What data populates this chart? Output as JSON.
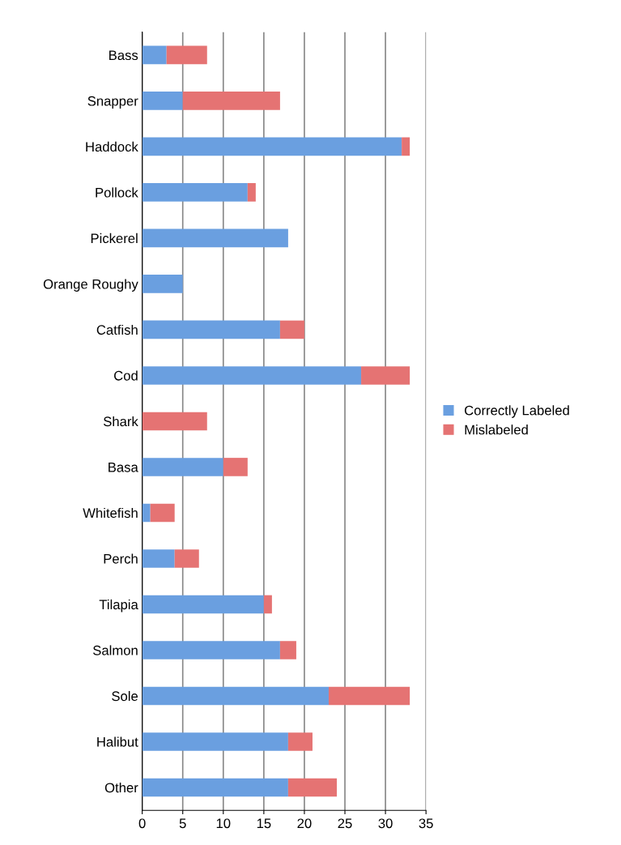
{
  "chart_data": {
    "type": "bar",
    "orientation": "horizontal",
    "stacked": true,
    "categories": [
      "Bass",
      "Snapper",
      "Haddock",
      "Pollock",
      "Pickerel",
      "Orange Roughy",
      "Catfish",
      "Cod",
      "Shark",
      "Basa",
      "Whitefish",
      "Perch",
      "Tilapia",
      "Salmon",
      "Sole",
      "Halibut",
      "Other"
    ],
    "series": [
      {
        "name": "Correctly Labeled",
        "color": "#6a9fe0",
        "values": [
          3,
          5,
          32,
          13,
          18,
          5,
          17,
          27,
          0,
          10,
          1,
          4,
          15,
          17,
          23,
          18,
          18
        ]
      },
      {
        "name": "Mislabeled",
        "color": "#e57373",
        "values": [
          5,
          12,
          1,
          1,
          0,
          0,
          3,
          6,
          8,
          3,
          3,
          3,
          1,
          2,
          10,
          3,
          6
        ]
      }
    ],
    "xlim": [
      0,
      35
    ],
    "xticks": [
      0,
      5,
      10,
      15,
      20,
      25,
      30,
      35
    ],
    "grid": "x",
    "legend": "right"
  }
}
